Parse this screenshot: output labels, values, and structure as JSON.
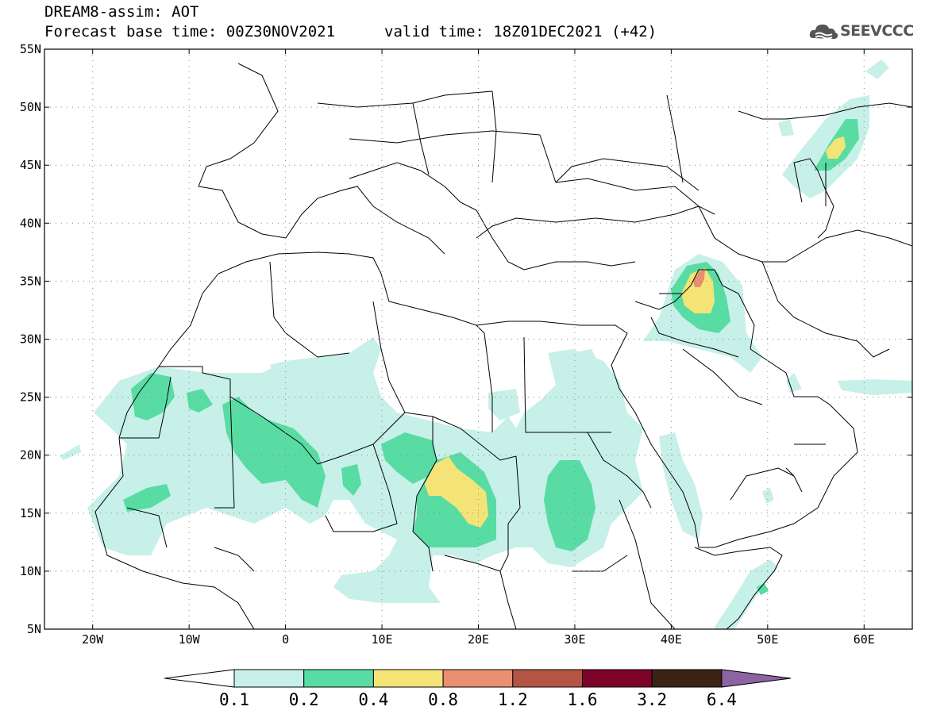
{
  "header": {
    "title": "DREAM8-assim: AOT",
    "base_time": "Forecast base time: 00Z30NOV2021",
    "valid_time": "valid time: 18Z01DEC2021 (+42)",
    "logo_text": "SEEVCCC",
    "logo_icon": "cloud-logo-icon"
  },
  "map": {
    "lon_range": [
      -25,
      65
    ],
    "lat_range": [
      5,
      55
    ],
    "lon_ticks": [
      {
        "value": -20,
        "label": "20W"
      },
      {
        "value": -10,
        "label": "10W"
      },
      {
        "value": 0,
        "label": "0"
      },
      {
        "value": 10,
        "label": "10E"
      },
      {
        "value": 20,
        "label": "20E"
      },
      {
        "value": 30,
        "label": "30E"
      },
      {
        "value": 40,
        "label": "40E"
      },
      {
        "value": 50,
        "label": "50E"
      },
      {
        "value": 60,
        "label": "60E"
      }
    ],
    "lat_ticks": [
      {
        "value": 55,
        "label": "55N"
      },
      {
        "value": 50,
        "label": "50N"
      },
      {
        "value": 45,
        "label": "45N"
      },
      {
        "value": 40,
        "label": "40N"
      },
      {
        "value": 35,
        "label": "35N"
      },
      {
        "value": 30,
        "label": "30N"
      },
      {
        "value": 25,
        "label": "25N"
      },
      {
        "value": 20,
        "label": "20N"
      },
      {
        "value": 15,
        "label": "15N"
      },
      {
        "value": 10,
        "label": "10N"
      },
      {
        "value": 5,
        "label": "5N"
      }
    ],
    "grid_dotted": true
  },
  "colorbar": {
    "labels": [
      "0.1",
      "0.2",
      "0.4",
      "0.8",
      "1.2",
      "1.6",
      "3.2",
      "6.4"
    ],
    "colors": [
      "#c6f0e8",
      "#58dca4",
      "#f4e478",
      "#e89070",
      "#b45444",
      "#7c0428",
      "#3c2414"
    ],
    "low_color": "#ffffff",
    "high_color": "#8c64a4"
  }
}
